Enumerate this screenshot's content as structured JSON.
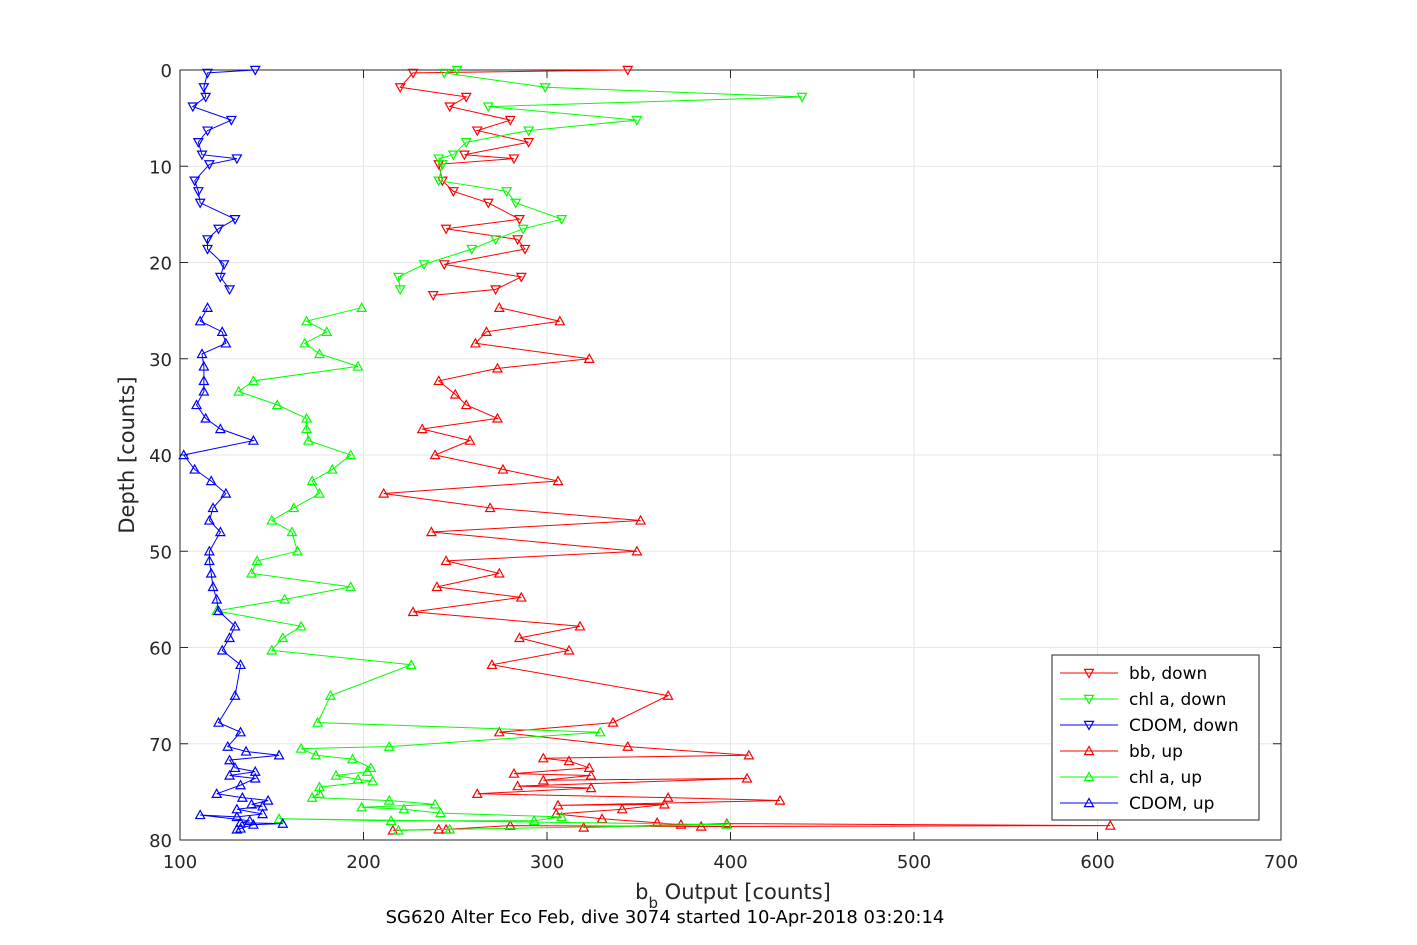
{
  "chart_data": {
    "type": "line",
    "title": "",
    "caption": "SG620 Alter Eco Feb, dive 3074 started 10-Apr-2018 03:20:14",
    "xlabel_main": "b",
    "xlabel_sub": "b",
    "xlabel_rest": " Output [counts]",
    "ylabel": "Depth [counts]",
    "xlim": [
      100,
      700
    ],
    "ylim": [
      0,
      80
    ],
    "y_reversed": true,
    "grid": true,
    "xticks": [
      "100",
      "200",
      "300",
      "400",
      "500",
      "600",
      "700"
    ],
    "yticks": [
      "0",
      "10",
      "20",
      "30",
      "40",
      "50",
      "60",
      "70",
      "80"
    ],
    "legend_position": "bottom-right",
    "series": [
      {
        "name": "bb, down",
        "color": "#ff0000",
        "marker": "triangle-down",
        "points": [
          [
            344,
            0
          ],
          [
            227,
            0.3
          ],
          [
            220,
            1.8
          ],
          [
            256,
            2.8
          ],
          [
            247,
            3.8
          ],
          [
            280,
            5.2
          ],
          [
            262,
            6.3
          ],
          [
            290,
            7.5
          ],
          [
            255,
            8.8
          ],
          [
            282,
            9.2
          ],
          [
            241,
            9.8
          ],
          [
            243,
            11.5
          ],
          [
            249,
            12.6
          ],
          [
            268,
            13.8
          ],
          [
            285,
            15.5
          ],
          [
            245,
            16.5
          ],
          [
            284,
            17.6
          ],
          [
            288,
            18.6
          ],
          [
            244,
            20.2
          ],
          [
            286,
            21.5
          ],
          [
            272,
            22.8
          ],
          [
            238,
            23.4
          ]
        ]
      },
      {
        "name": "chl a, down",
        "color": "#00ff00",
        "marker": "triangle-down",
        "points": [
          [
            251,
            0
          ],
          [
            244,
            0.3
          ],
          [
            299,
            1.8
          ],
          [
            439,
            2.8
          ],
          [
            268,
            3.8
          ],
          [
            349,
            5.2
          ],
          [
            290,
            6.3
          ],
          [
            256,
            7.5
          ],
          [
            249,
            8.8
          ],
          [
            241,
            9.2
          ],
          [
            243,
            9.8
          ],
          [
            241,
            11.5
          ],
          [
            278,
            12.6
          ],
          [
            283,
            13.8
          ],
          [
            308,
            15.5
          ],
          [
            287,
            16.5
          ],
          [
            272,
            17.6
          ],
          [
            259,
            18.6
          ],
          [
            233,
            20.2
          ],
          [
            219,
            21.5
          ],
          [
            220,
            22.8
          ]
        ]
      },
      {
        "name": "CDOM, down",
        "color": "#0000ff",
        "marker": "triangle-down",
        "points": [
          [
            141,
            0
          ],
          [
            115,
            0.3
          ],
          [
            113,
            1.8
          ],
          [
            114,
            2.8
          ],
          [
            107,
            3.8
          ],
          [
            128,
            5.2
          ],
          [
            115,
            6.3
          ],
          [
            110,
            7.5
          ],
          [
            112,
            8.8
          ],
          [
            131,
            9.2
          ],
          [
            116,
            9.8
          ],
          [
            108,
            11.5
          ],
          [
            110,
            12.6
          ],
          [
            111,
            13.8
          ],
          [
            130,
            15.5
          ],
          [
            121,
            16.5
          ],
          [
            115,
            17.6
          ],
          [
            115,
            18.6
          ],
          [
            124,
            20.2
          ],
          [
            122,
            21.5
          ],
          [
            127,
            22.8
          ]
        ]
      },
      {
        "name": "bb, up",
        "color": "#ff0000",
        "marker": "triangle-up",
        "points": [
          [
            274,
            24.7
          ],
          [
            307,
            26.1
          ],
          [
            267,
            27.2
          ],
          [
            261,
            28.4
          ],
          [
            323,
            30
          ],
          [
            273,
            31
          ],
          [
            241,
            32.3
          ],
          [
            250,
            33.7
          ],
          [
            256,
            34.8
          ],
          [
            273,
            36.2
          ],
          [
            232,
            37.3
          ],
          [
            258,
            38.5
          ],
          [
            239,
            40
          ],
          [
            276,
            41.5
          ],
          [
            306,
            42.7
          ],
          [
            211,
            44
          ],
          [
            269,
            45.5
          ],
          [
            351,
            46.8
          ],
          [
            237,
            48
          ],
          [
            349,
            50
          ],
          [
            245,
            51
          ],
          [
            274,
            52.3
          ],
          [
            240,
            53.7
          ],
          [
            286,
            54.8
          ],
          [
            227,
            56.3
          ],
          [
            318,
            57.8
          ],
          [
            285,
            59
          ],
          [
            312,
            60.3
          ],
          [
            270,
            61.8
          ],
          [
            366,
            65
          ],
          [
            336,
            67.8
          ],
          [
            274,
            68.8
          ],
          [
            344,
            70.3
          ],
          [
            410,
            71.2
          ],
          [
            298,
            71.5
          ],
          [
            312,
            71.8
          ],
          [
            323,
            72.5
          ],
          [
            282,
            73.1
          ],
          [
            324,
            73.3
          ],
          [
            298,
            73.8
          ],
          [
            409,
            73.6
          ],
          [
            284,
            74.4
          ],
          [
            324,
            74.6
          ],
          [
            262,
            75.2
          ],
          [
            366,
            75.6
          ],
          [
            427,
            75.9
          ],
          [
            306,
            76.4
          ],
          [
            364,
            76.3
          ],
          [
            341,
            76.8
          ],
          [
            305,
            77.3
          ],
          [
            330,
            77.8
          ],
          [
            360,
            78.2
          ],
          [
            373,
            78.4
          ],
          [
            320,
            78.7
          ],
          [
            398,
            78.3
          ],
          [
            607,
            78.5
          ],
          [
            384,
            78.6
          ],
          [
            280,
            78.5
          ],
          [
            245,
            78.9
          ],
          [
            241,
            78.9
          ],
          [
            216,
            79
          ]
        ]
      },
      {
        "name": "chl a, up",
        "color": "#00ff00",
        "marker": "triangle-up",
        "points": [
          [
            199,
            24.7
          ],
          [
            169,
            26.1
          ],
          [
            180,
            27.2
          ],
          [
            168,
            28.4
          ],
          [
            176,
            29.5
          ],
          [
            197,
            30.8
          ],
          [
            140,
            32.3
          ],
          [
            132,
            33.4
          ],
          [
            153,
            34.8
          ],
          [
            169,
            36.2
          ],
          [
            169,
            37.3
          ],
          [
            170,
            38.5
          ],
          [
            193,
            40
          ],
          [
            183,
            41.5
          ],
          [
            172,
            42.7
          ],
          [
            176,
            44
          ],
          [
            162,
            45.5
          ],
          [
            150,
            46.8
          ],
          [
            161,
            48
          ],
          [
            164,
            50
          ],
          [
            142,
            51
          ],
          [
            139,
            52.3
          ],
          [
            193,
            53.7
          ],
          [
            157,
            55
          ],
          [
            120,
            56.2
          ],
          [
            166,
            57.8
          ],
          [
            156,
            59
          ],
          [
            150,
            60.3
          ],
          [
            226,
            61.8
          ],
          [
            182,
            65
          ],
          [
            175,
            67.8
          ],
          [
            329,
            68.8
          ],
          [
            214,
            70.3
          ],
          [
            166,
            70.5
          ],
          [
            174,
            71.2
          ],
          [
            194,
            71.6
          ],
          [
            204,
            72.5
          ],
          [
            202,
            72.9
          ],
          [
            185,
            73.3
          ],
          [
            197,
            73.7
          ],
          [
            205,
            73.9
          ],
          [
            176,
            74.5
          ],
          [
            176,
            75.2
          ],
          [
            172,
            75.6
          ],
          [
            214,
            75.9
          ],
          [
            239,
            76.3
          ],
          [
            199,
            76.6
          ],
          [
            222,
            76.8
          ],
          [
            242,
            77.2
          ],
          [
            308,
            77.6
          ],
          [
            293,
            78
          ],
          [
            215,
            78
          ],
          [
            154,
            77.8
          ],
          [
            398,
            78.4
          ],
          [
            247,
            78.9
          ],
          [
            219,
            79
          ]
        ]
      },
      {
        "name": "CDOM, up",
        "color": "#0000ff",
        "marker": "triangle-up",
        "points": [
          [
            115,
            24.7
          ],
          [
            111,
            26.1
          ],
          [
            123,
            27.2
          ],
          [
            125,
            28.4
          ],
          [
            112,
            29.5
          ],
          [
            113,
            30.8
          ],
          [
            113,
            32.3
          ],
          [
            113,
            33.4
          ],
          [
            109,
            34.8
          ],
          [
            114,
            36.2
          ],
          [
            122,
            37.3
          ],
          [
            140,
            38.5
          ],
          [
            102,
            40
          ],
          [
            108,
            41.5
          ],
          [
            117,
            42.7
          ],
          [
            125,
            44
          ],
          [
            118,
            45.5
          ],
          [
            116,
            46.8
          ],
          [
            122,
            48
          ],
          [
            116,
            50
          ],
          [
            116,
            51
          ],
          [
            117,
            52.3
          ],
          [
            118,
            53.7
          ],
          [
            120,
            55
          ],
          [
            121,
            56.2
          ],
          [
            130,
            57.8
          ],
          [
            127,
            59
          ],
          [
            123,
            60.3
          ],
          [
            133,
            61.8
          ],
          [
            130,
            65
          ],
          [
            121,
            67.8
          ],
          [
            133,
            68.8
          ],
          [
            126,
            70.3
          ],
          [
            136,
            70.8
          ],
          [
            154,
            71.2
          ],
          [
            127,
            71.7
          ],
          [
            130,
            72.5
          ],
          [
            141,
            72.9
          ],
          [
            127,
            73.3
          ],
          [
            141,
            73.6
          ],
          [
            133,
            74.3
          ],
          [
            120,
            75.2
          ],
          [
            134,
            75.6
          ],
          [
            148,
            75.9
          ],
          [
            139,
            76.3
          ],
          [
            145,
            76.5
          ],
          [
            131,
            76.8
          ],
          [
            145,
            77.3
          ],
          [
            131,
            77.6
          ],
          [
            111,
            77.4
          ],
          [
            138,
            78
          ],
          [
            133,
            78.2
          ],
          [
            156,
            78.3
          ],
          [
            140,
            78.4
          ],
          [
            133,
            78.8
          ],
          [
            131,
            78.9
          ]
        ]
      }
    ]
  }
}
